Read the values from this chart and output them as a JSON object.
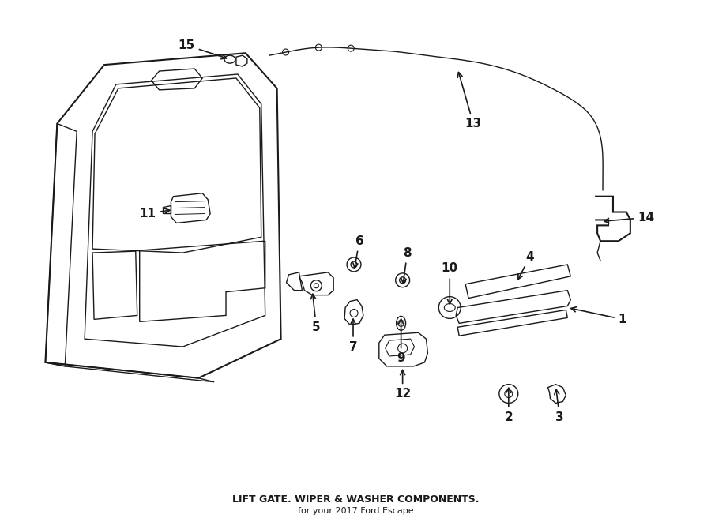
{
  "title": "LIFT GATE. WIPER & WASHER COMPONENTS.",
  "subtitle": "for your 2017 Ford Escape",
  "background_color": "#ffffff",
  "line_color": "#1a1a1a",
  "text_color": "#1a1a1a",
  "fig_width": 9.0,
  "fig_height": 6.61,
  "dpi": 100
}
